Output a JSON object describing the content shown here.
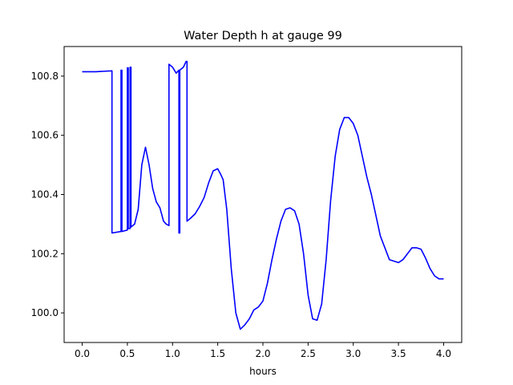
{
  "chart_data": {
    "type": "line",
    "title": "Water Depth h at gauge 99",
    "xlabel": "hours",
    "ylabel": "",
    "xlim": [
      -0.2,
      4.2
    ],
    "ylim": [
      99.9,
      100.9
    ],
    "xticks": [
      0.0,
      0.5,
      1.0,
      1.5,
      2.0,
      2.5,
      3.0,
      3.5,
      4.0
    ],
    "xtick_labels": [
      "0.0",
      "0.5",
      "1.0",
      "1.5",
      "2.0",
      "2.5",
      "3.0",
      "3.5",
      "4.0"
    ],
    "yticks": [
      100.0,
      100.2,
      100.4,
      100.6,
      100.8
    ],
    "ytick_labels": [
      "100.0",
      "100.2",
      "100.4",
      "100.6",
      "100.8"
    ],
    "grid": false,
    "series": [
      {
        "color": "#0000ff",
        "x": [
          0.0,
          0.15,
          0.33,
          0.33,
          0.43,
          0.43,
          0.44,
          0.44,
          0.5,
          0.5,
          0.51,
          0.51,
          0.53,
          0.53,
          0.54,
          0.54,
          0.58,
          0.62,
          0.66,
          0.7,
          0.74,
          0.78,
          0.82,
          0.86,
          0.9,
          0.93,
          0.96,
          0.96,
          1.0,
          1.04,
          1.07,
          1.07,
          1.08,
          1.08,
          1.12,
          1.15,
          1.16,
          1.16,
          1.2,
          1.25,
          1.3,
          1.35,
          1.4,
          1.45,
          1.5,
          1.53,
          1.56,
          1.6,
          1.65,
          1.7,
          1.75,
          1.8,
          1.85,
          1.9,
          1.95,
          2.0,
          2.05,
          2.1,
          2.15,
          2.2,
          2.25,
          2.3,
          2.35,
          2.4,
          2.45,
          2.5,
          2.55,
          2.6,
          2.65,
          2.7,
          2.75,
          2.8,
          2.85,
          2.9,
          2.95,
          3.0,
          3.05,
          3.1,
          3.15,
          3.2,
          3.3,
          3.4,
          3.5,
          3.55,
          3.6,
          3.65,
          3.7,
          3.75,
          3.8,
          3.85,
          3.9,
          3.95,
          4.0
        ],
        "y": [
          100.815,
          100.815,
          100.818,
          100.27,
          100.275,
          100.82,
          100.82,
          100.275,
          100.28,
          100.828,
          100.828,
          100.285,
          100.285,
          100.83,
          100.83,
          100.29,
          100.3,
          100.35,
          100.5,
          100.56,
          100.5,
          100.42,
          100.375,
          100.355,
          100.31,
          100.3,
          100.295,
          100.84,
          100.83,
          100.81,
          100.82,
          100.27,
          100.27,
          100.82,
          100.83,
          100.85,
          100.85,
          100.31,
          100.32,
          100.335,
          100.36,
          100.39,
          100.44,
          100.48,
          100.487,
          100.47,
          100.45,
          100.35,
          100.15,
          100.0,
          99.945,
          99.96,
          99.98,
          100.01,
          100.02,
          100.04,
          100.1,
          100.18,
          100.25,
          100.31,
          100.35,
          100.355,
          100.345,
          100.3,
          100.2,
          100.06,
          99.98,
          99.975,
          100.03,
          100.18,
          100.38,
          100.53,
          100.62,
          100.66,
          100.66,
          100.64,
          100.6,
          100.53,
          100.46,
          100.4,
          100.26,
          100.18,
          100.17,
          100.18,
          100.2,
          100.22,
          100.22,
          100.215,
          100.185,
          100.15,
          100.125,
          100.115,
          100.115
        ]
      }
    ]
  }
}
